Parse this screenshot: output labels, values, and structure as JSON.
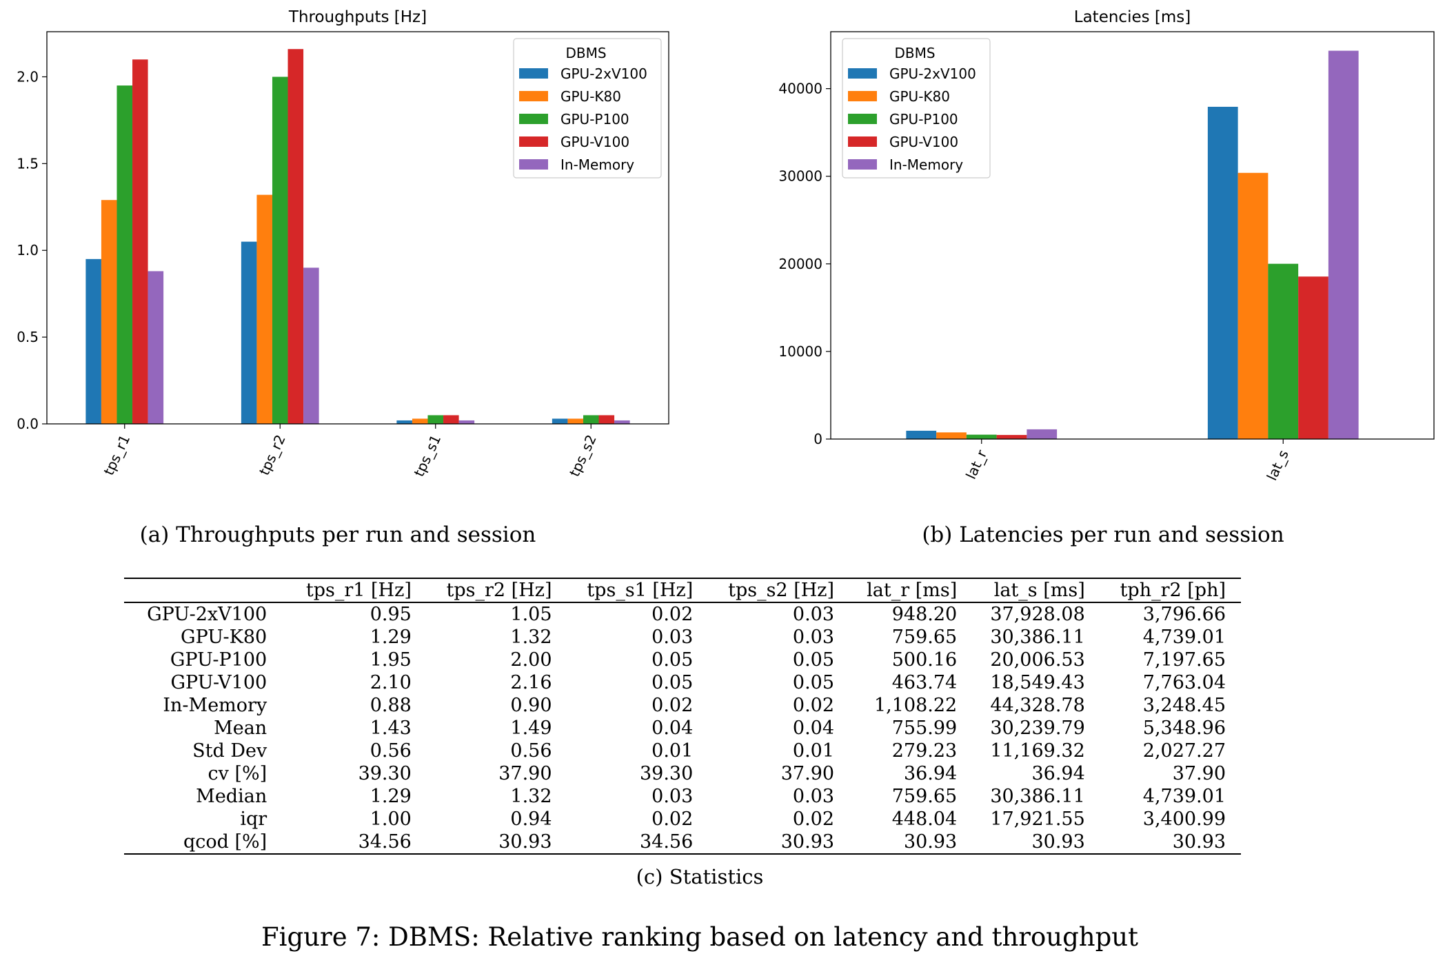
{
  "chart_data": [
    {
      "type": "bar",
      "title": "Throughputs [Hz]",
      "categories": [
        "tps_r1",
        "tps_r2",
        "tps_s1",
        "tps_s2"
      ],
      "ylim": [
        0,
        2.26
      ],
      "yticks": [
        0.0,
        0.5,
        1.0,
        1.5,
        2.0
      ],
      "ytick_labels": [
        "0.0",
        "0.5",
        "1.0",
        "1.5",
        "2.0"
      ],
      "legend": {
        "title": "DBMS",
        "placement": "top-right"
      },
      "series": [
        {
          "name": "GPU-2xV100",
          "color": "#1f77b4",
          "values": [
            0.95,
            1.05,
            0.02,
            0.03
          ]
        },
        {
          "name": "GPU-K80",
          "color": "#ff7f0e",
          "values": [
            1.29,
            1.32,
            0.03,
            0.03
          ]
        },
        {
          "name": "GPU-P100",
          "color": "#2ca02c",
          "values": [
            1.95,
            2.0,
            0.05,
            0.05
          ]
        },
        {
          "name": "GPU-V100",
          "color": "#d62728",
          "values": [
            2.1,
            2.16,
            0.05,
            0.05
          ]
        },
        {
          "name": "In-Memory",
          "color": "#9467bd",
          "values": [
            0.88,
            0.9,
            0.02,
            0.02
          ]
        }
      ],
      "caption": "(a) Throughputs per run and session"
    },
    {
      "type": "bar",
      "title": "Latencies [ms]",
      "categories": [
        "lat_r",
        "lat_s"
      ],
      "ylim": [
        0,
        46500
      ],
      "yticks": [
        0,
        10000,
        20000,
        30000,
        40000
      ],
      "ytick_labels": [
        "0",
        "10000",
        "20000",
        "30000",
        "40000"
      ],
      "legend": {
        "title": "DBMS",
        "placement": "top-left"
      },
      "series": [
        {
          "name": "GPU-2xV100",
          "color": "#1f77b4",
          "values": [
            948.2,
            37928.08
          ]
        },
        {
          "name": "GPU-K80",
          "color": "#ff7f0e",
          "values": [
            759.65,
            30386.11
          ]
        },
        {
          "name": "GPU-P100",
          "color": "#2ca02c",
          "values": [
            500.16,
            20006.53
          ]
        },
        {
          "name": "GPU-V100",
          "color": "#d62728",
          "values": [
            463.74,
            18549.43
          ]
        },
        {
          "name": "In-Memory",
          "color": "#9467bd",
          "values": [
            1108.22,
            44328.78
          ]
        }
      ],
      "caption": "(b) Latencies per run and session"
    }
  ],
  "table": {
    "headers": [
      "",
      "tps_r1 [Hz]",
      "tps_r2 [Hz]",
      "tps_s1 [Hz]",
      "tps_s2 [Hz]",
      "lat_r [ms]",
      "lat_s [ms]",
      "tph_r2 [ph]"
    ],
    "rows": [
      [
        "GPU-2xV100",
        "0.95",
        "1.05",
        "0.02",
        "0.03",
        "948.20",
        "37,928.08",
        "3,796.66"
      ],
      [
        "GPU-K80",
        "1.29",
        "1.32",
        "0.03",
        "0.03",
        "759.65",
        "30,386.11",
        "4,739.01"
      ],
      [
        "GPU-P100",
        "1.95",
        "2.00",
        "0.05",
        "0.05",
        "500.16",
        "20,006.53",
        "7,197.65"
      ],
      [
        "GPU-V100",
        "2.10",
        "2.16",
        "0.05",
        "0.05",
        "463.74",
        "18,549.43",
        "7,763.04"
      ],
      [
        "In-Memory",
        "0.88",
        "0.90",
        "0.02",
        "0.02",
        "1,108.22",
        "44,328.78",
        "3,248.45"
      ],
      [
        "Mean",
        "1.43",
        "1.49",
        "0.04",
        "0.04",
        "755.99",
        "30,239.79",
        "5,348.96"
      ],
      [
        "Std Dev",
        "0.56",
        "0.56",
        "0.01",
        "0.01",
        "279.23",
        "11,169.32",
        "2,027.27"
      ],
      [
        "cv [%]",
        "39.30",
        "37.90",
        "39.30",
        "37.90",
        "36.94",
        "36.94",
        "37.90"
      ],
      [
        "Median",
        "1.29",
        "1.32",
        "0.03",
        "0.03",
        "759.65",
        "30,386.11",
        "4,739.01"
      ],
      [
        "iqr",
        "1.00",
        "0.94",
        "0.02",
        "0.02",
        "448.04",
        "17,921.55",
        "3,400.99"
      ],
      [
        "qcod [%]",
        "34.56",
        "30.93",
        "34.56",
        "30.93",
        "30.93",
        "30.93",
        "30.93"
      ]
    ],
    "caption": "(c) Statistics"
  },
  "figure_caption": "Figure 7: DBMS: Relative ranking based on latency and throughput"
}
